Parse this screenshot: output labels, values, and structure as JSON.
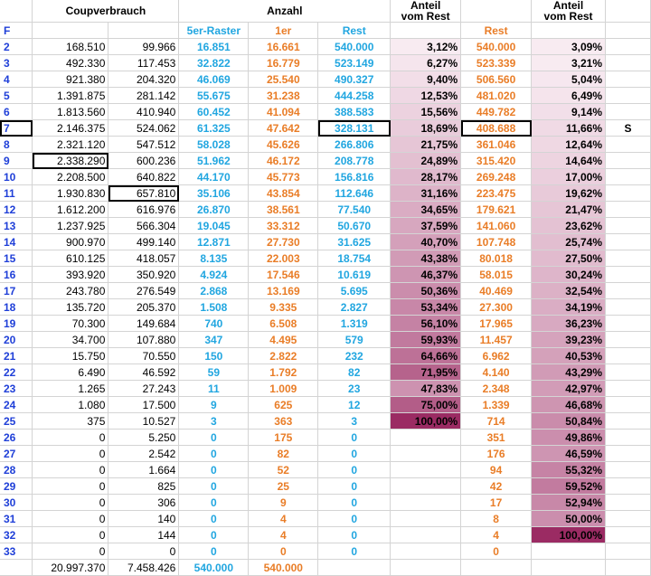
{
  "headers": {
    "coupon": "Coupverbrauch",
    "anzahl": "Anzahl",
    "anteil1": [
      "Anteil",
      "vom Rest"
    ],
    "anteil2": [
      "Anteil",
      "vom Rest"
    ]
  },
  "subheaders": {
    "f": "F",
    "raster": "5er-Raster",
    "einer": "1er",
    "rest1": "Rest",
    "rest2": "Rest"
  },
  "marker": "S",
  "rows": [
    {
      "f": "2",
      "a": "168.510",
      "b": "99.966",
      "r5": "16.851",
      "r1": "16.661",
      "rest": "540.000",
      "p1": "3,12%",
      "rest2": "540.000",
      "p2": "3,09%"
    },
    {
      "f": "3",
      "a": "492.330",
      "b": "117.453",
      "r5": "32.822",
      "r1": "16.779",
      "rest": "523.149",
      "p1": "6,27%",
      "rest2": "523.339",
      "p2": "3,21%"
    },
    {
      "f": "4",
      "a": "921.380",
      "b": "204.320",
      "r5": "46.069",
      "r1": "25.540",
      "rest": "490.327",
      "p1": "9,40%",
      "rest2": "506.560",
      "p2": "5,04%"
    },
    {
      "f": "5",
      "a": "1.391.875",
      "b": "281.142",
      "r5": "55.675",
      "r1": "31.238",
      "rest": "444.258",
      "p1": "12,53%",
      "rest2": "481.020",
      "p2": "6,49%"
    },
    {
      "f": "6",
      "a": "1.813.560",
      "b": "410.940",
      "r5": "60.452",
      "r1": "41.094",
      "rest": "388.583",
      "p1": "15,56%",
      "rest2": "449.782",
      "p2": "9,14%"
    },
    {
      "f": "7",
      "a": "2.146.375",
      "b": "524.062",
      "r5": "61.325",
      "r1": "47.642",
      "rest": "328.131",
      "p1": "18,69%",
      "rest2": "408.688",
      "p2": "11,66%"
    },
    {
      "f": "8",
      "a": "2.321.120",
      "b": "547.512",
      "r5": "58.028",
      "r1": "45.626",
      "rest": "266.806",
      "p1": "21,75%",
      "rest2": "361.046",
      "p2": "12,64%"
    },
    {
      "f": "9",
      "a": "2.338.290",
      "b": "600.236",
      "r5": "51.962",
      "r1": "46.172",
      "rest": "208.778",
      "p1": "24,89%",
      "rest2": "315.420",
      "p2": "14,64%"
    },
    {
      "f": "10",
      "a": "2.208.500",
      "b": "640.822",
      "r5": "44.170",
      "r1": "45.773",
      "rest": "156.816",
      "p1": "28,17%",
      "rest2": "269.248",
      "p2": "17,00%"
    },
    {
      "f": "11",
      "a": "1.930.830",
      "b": "657.810",
      "r5": "35.106",
      "r1": "43.854",
      "rest": "112.646",
      "p1": "31,16%",
      "rest2": "223.475",
      "p2": "19,62%"
    },
    {
      "f": "12",
      "a": "1.612.200",
      "b": "616.976",
      "r5": "26.870",
      "r1": "38.561",
      "rest": "77.540",
      "p1": "34,65%",
      "rest2": "179.621",
      "p2": "21,47%"
    },
    {
      "f": "13",
      "a": "1.237.925",
      "b": "566.304",
      "r5": "19.045",
      "r1": "33.312",
      "rest": "50.670",
      "p1": "37,59%",
      "rest2": "141.060",
      "p2": "23,62%"
    },
    {
      "f": "14",
      "a": "900.970",
      "b": "499.140",
      "r5": "12.871",
      "r1": "27.730",
      "rest": "31.625",
      "p1": "40,70%",
      "rest2": "107.748",
      "p2": "25,74%"
    },
    {
      "f": "15",
      "a": "610.125",
      "b": "418.057",
      "r5": "8.135",
      "r1": "22.003",
      "rest": "18.754",
      "p1": "43,38%",
      "rest2": "80.018",
      "p2": "27,50%"
    },
    {
      "f": "16",
      "a": "393.920",
      "b": "350.920",
      "r5": "4.924",
      "r1": "17.546",
      "rest": "10.619",
      "p1": "46,37%",
      "rest2": "58.015",
      "p2": "30,24%"
    },
    {
      "f": "17",
      "a": "243.780",
      "b": "276.549",
      "r5": "2.868",
      "r1": "13.169",
      "rest": "5.695",
      "p1": "50,36%",
      "rest2": "40.469",
      "p2": "32,54%"
    },
    {
      "f": "18",
      "a": "135.720",
      "b": "205.370",
      "r5": "1.508",
      "r1": "9.335",
      "rest": "2.827",
      "p1": "53,34%",
      "rest2": "27.300",
      "p2": "34,19%"
    },
    {
      "f": "19",
      "a": "70.300",
      "b": "149.684",
      "r5": "740",
      "r1": "6.508",
      "rest": "1.319",
      "p1": "56,10%",
      "rest2": "17.965",
      "p2": "36,23%"
    },
    {
      "f": "20",
      "a": "34.700",
      "b": "107.880",
      "r5": "347",
      "r1": "4.495",
      "rest": "579",
      "p1": "59,93%",
      "rest2": "11.457",
      "p2": "39,23%"
    },
    {
      "f": "21",
      "a": "15.750",
      "b": "70.550",
      "r5": "150",
      "r1": "2.822",
      "rest": "232",
      "p1": "64,66%",
      "rest2": "6.962",
      "p2": "40,53%"
    },
    {
      "f": "22",
      "a": "6.490",
      "b": "46.592",
      "r5": "59",
      "r1": "1.792",
      "rest": "82",
      "p1": "71,95%",
      "rest2": "4.140",
      "p2": "43,29%"
    },
    {
      "f": "23",
      "a": "1.265",
      "b": "27.243",
      "r5": "11",
      "r1": "1.009",
      "rest": "23",
      "p1": "47,83%",
      "rest2": "2.348",
      "p2": "42,97%"
    },
    {
      "f": "24",
      "a": "1.080",
      "b": "17.500",
      "r5": "9",
      "r1": "625",
      "rest": "12",
      "p1": "75,00%",
      "rest2": "1.339",
      "p2": "46,68%"
    },
    {
      "f": "25",
      "a": "375",
      "b": "10.527",
      "r5": "3",
      "r1": "363",
      "rest": "3",
      "p1": "100,00%",
      "rest2": "714",
      "p2": "50,84%"
    },
    {
      "f": "26",
      "a": "0",
      "b": "5.250",
      "r5": "0",
      "r1": "175",
      "rest": "0",
      "p1": "",
      "rest2": "351",
      "p2": "49,86%"
    },
    {
      "f": "27",
      "a": "0",
      "b": "2.542",
      "r5": "0",
      "r1": "82",
      "rest": "0",
      "p1": "",
      "rest2": "176",
      "p2": "46,59%"
    },
    {
      "f": "28",
      "a": "0",
      "b": "1.664",
      "r5": "0",
      "r1": "52",
      "rest": "0",
      "p1": "",
      "rest2": "94",
      "p2": "55,32%"
    },
    {
      "f": "29",
      "a": "0",
      "b": "825",
      "r5": "0",
      "r1": "25",
      "rest": "0",
      "p1": "",
      "rest2": "42",
      "p2": "59,52%"
    },
    {
      "f": "30",
      "a": "0",
      "b": "306",
      "r5": "0",
      "r1": "9",
      "rest": "0",
      "p1": "",
      "rest2": "17",
      "p2": "52,94%"
    },
    {
      "f": "31",
      "a": "0",
      "b": "140",
      "r5": "0",
      "r1": "4",
      "rest": "0",
      "p1": "",
      "rest2": "8",
      "p2": "50,00%"
    },
    {
      "f": "32",
      "a": "0",
      "b": "144",
      "r5": "0",
      "r1": "4",
      "rest": "0",
      "p1": "",
      "rest2": "4",
      "p2": "100,00%"
    },
    {
      "f": "33",
      "a": "0",
      "b": "0",
      "r5": "0",
      "r1": "0",
      "rest": "0",
      "p1": "",
      "rest2": "0",
      "p2": ""
    }
  ],
  "totals": {
    "a": "20.997.370",
    "b": "7.458.426",
    "r5": "540.000",
    "r1": "540.000"
  },
  "colors": {
    "blue": "#21a6e0",
    "orange": "#e97d27",
    "f_blue": "#1f3fd8",
    "shade_light": "#fbf1f6",
    "shade_dark": "#9b2b63"
  }
}
